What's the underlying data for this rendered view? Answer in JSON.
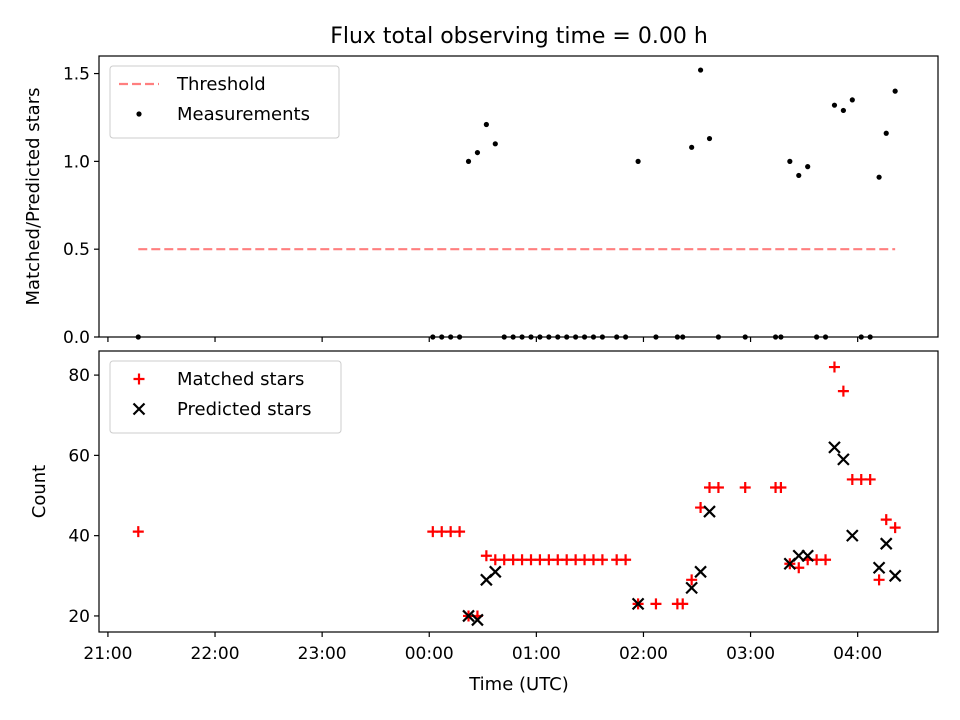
{
  "chart_data": [
    {
      "type": "scatter",
      "title": "Flux total observing time = 0.00 h",
      "xlabel": "",
      "ylabel": "Matched/Predicted stars",
      "xlim": [
        "20:55",
        "04:45"
      ],
      "ylim": [
        0,
        1.6
      ],
      "xticks": [
        {
          "x": "21:00",
          "label": ""
        },
        {
          "x": "22:00",
          "label": ""
        },
        {
          "x": "23:00",
          "label": ""
        },
        {
          "x": "00:00",
          "label": ""
        },
        {
          "x": "01:00",
          "label": ""
        },
        {
          "x": "02:00",
          "label": ""
        },
        {
          "x": "03:00",
          "label": ""
        },
        {
          "x": "04:00",
          "label": ""
        }
      ],
      "yticks": [
        {
          "y": 0,
          "label": "0.0"
        },
        {
          "y": 0.5,
          "label": "0.5"
        },
        {
          "y": 1.0,
          "label": "1.0"
        },
        {
          "y": 1.5,
          "label": "1.5"
        }
      ],
      "legend": "top-left",
      "threshold": {
        "name": "Threshold",
        "value": 0.5,
        "x_range": [
          "21:17",
          "04:21"
        ],
        "color": "#ff7f7f"
      },
      "series": [
        {
          "name": "Measurements",
          "color": "#000000",
          "points": [
            {
              "x": "21:17",
              "y": 0
            },
            {
              "x": "00:02",
              "y": 0
            },
            {
              "x": "00:07",
              "y": 0
            },
            {
              "x": "00:12",
              "y": 0
            },
            {
              "x": "00:17",
              "y": 0
            },
            {
              "x": "00:22",
              "y": 1.0
            },
            {
              "x": "00:27",
              "y": 1.05
            },
            {
              "x": "00:32",
              "y": 1.21
            },
            {
              "x": "00:37",
              "y": 1.1
            },
            {
              "x": "00:42",
              "y": 0
            },
            {
              "x": "00:47",
              "y": 0
            },
            {
              "x": "00:52",
              "y": 0
            },
            {
              "x": "00:57",
              "y": 0
            },
            {
              "x": "01:02",
              "y": 0
            },
            {
              "x": "01:07",
              "y": 0
            },
            {
              "x": "01:12",
              "y": 0
            },
            {
              "x": "01:17",
              "y": 0
            },
            {
              "x": "01:22",
              "y": 0
            },
            {
              "x": "01:27",
              "y": 0
            },
            {
              "x": "01:32",
              "y": 0
            },
            {
              "x": "01:37",
              "y": 0
            },
            {
              "x": "01:45",
              "y": 0
            },
            {
              "x": "01:50",
              "y": 0
            },
            {
              "x": "01:57",
              "y": 1.0
            },
            {
              "x": "02:07",
              "y": 0
            },
            {
              "x": "02:19",
              "y": 0
            },
            {
              "x": "02:22",
              "y": 0
            },
            {
              "x": "02:27",
              "y": 1.08
            },
            {
              "x": "02:32",
              "y": 1.52
            },
            {
              "x": "02:37",
              "y": 1.13
            },
            {
              "x": "02:42",
              "y": 0
            },
            {
              "x": "02:57",
              "y": 0
            },
            {
              "x": "03:14",
              "y": 0
            },
            {
              "x": "03:17",
              "y": 0
            },
            {
              "x": "03:22",
              "y": 1.0
            },
            {
              "x": "03:27",
              "y": 0.92
            },
            {
              "x": "03:32",
              "y": 0.97
            },
            {
              "x": "03:37",
              "y": 0
            },
            {
              "x": "03:42",
              "y": 0
            },
            {
              "x": "03:47",
              "y": 1.32
            },
            {
              "x": "03:52",
              "y": 1.29
            },
            {
              "x": "03:57",
              "y": 1.35
            },
            {
              "x": "04:02",
              "y": 0
            },
            {
              "x": "04:07",
              "y": 0
            },
            {
              "x": "04:12",
              "y": 0.91
            },
            {
              "x": "04:16",
              "y": 1.16
            },
            {
              "x": "04:21",
              "y": 1.4
            }
          ]
        }
      ]
    },
    {
      "type": "scatter",
      "title": "",
      "xlabel": "Time (UTC)",
      "ylabel": "Count",
      "xlim": [
        "20:55",
        "04:45"
      ],
      "ylim": [
        16,
        86
      ],
      "xticks": [
        {
          "x": "21:00",
          "label": "21:00"
        },
        {
          "x": "22:00",
          "label": "22:00"
        },
        {
          "x": "23:00",
          "label": "23:00"
        },
        {
          "x": "00:00",
          "label": "00:00"
        },
        {
          "x": "01:00",
          "label": "01:00"
        },
        {
          "x": "02:00",
          "label": "02:00"
        },
        {
          "x": "03:00",
          "label": "03:00"
        },
        {
          "x": "04:00",
          "label": "04:00"
        }
      ],
      "yticks": [
        {
          "y": 20,
          "label": "20"
        },
        {
          "y": 40,
          "label": "40"
        },
        {
          "y": 60,
          "label": "60"
        },
        {
          "y": 80,
          "label": "80"
        }
      ],
      "legend": "top-left",
      "series": [
        {
          "name": "Matched stars",
          "marker": "plus",
          "color": "#ff0000",
          "points": [
            {
              "x": "21:17",
              "y": 41
            },
            {
              "x": "00:02",
              "y": 41
            },
            {
              "x": "00:07",
              "y": 41
            },
            {
              "x": "00:12",
              "y": 41
            },
            {
              "x": "00:17",
              "y": 41
            },
            {
              "x": "00:22",
              "y": 20
            },
            {
              "x": "00:27",
              "y": 20
            },
            {
              "x": "00:32",
              "y": 35
            },
            {
              "x": "00:37",
              "y": 34
            },
            {
              "x": "00:42",
              "y": 34
            },
            {
              "x": "00:47",
              "y": 34
            },
            {
              "x": "00:52",
              "y": 34
            },
            {
              "x": "00:57",
              "y": 34
            },
            {
              "x": "01:02",
              "y": 34
            },
            {
              "x": "01:07",
              "y": 34
            },
            {
              "x": "01:12",
              "y": 34
            },
            {
              "x": "01:17",
              "y": 34
            },
            {
              "x": "01:22",
              "y": 34
            },
            {
              "x": "01:27",
              "y": 34
            },
            {
              "x": "01:32",
              "y": 34
            },
            {
              "x": "01:37",
              "y": 34
            },
            {
              "x": "01:45",
              "y": 34
            },
            {
              "x": "01:50",
              "y": 34
            },
            {
              "x": "01:57",
              "y": 23
            },
            {
              "x": "02:07",
              "y": 23
            },
            {
              "x": "02:19",
              "y": 23
            },
            {
              "x": "02:22",
              "y": 23
            },
            {
              "x": "02:27",
              "y": 29
            },
            {
              "x": "02:32",
              "y": 47
            },
            {
              "x": "02:37",
              "y": 52
            },
            {
              "x": "02:42",
              "y": 52
            },
            {
              "x": "02:57",
              "y": 52
            },
            {
              "x": "03:14",
              "y": 52
            },
            {
              "x": "03:17",
              "y": 52
            },
            {
              "x": "03:22",
              "y": 33
            },
            {
              "x": "03:27",
              "y": 32
            },
            {
              "x": "03:32",
              "y": 34
            },
            {
              "x": "03:37",
              "y": 34
            },
            {
              "x": "03:42",
              "y": 34
            },
            {
              "x": "03:47",
              "y": 82
            },
            {
              "x": "03:52",
              "y": 76
            },
            {
              "x": "03:57",
              "y": 54
            },
            {
              "x": "04:02",
              "y": 54
            },
            {
              "x": "04:07",
              "y": 54
            },
            {
              "x": "04:12",
              "y": 29
            },
            {
              "x": "04:16",
              "y": 44
            },
            {
              "x": "04:21",
              "y": 42
            }
          ]
        },
        {
          "name": "Predicted stars",
          "marker": "x",
          "color": "#000000",
          "points": [
            {
              "x": "00:22",
              "y": 20
            },
            {
              "x": "00:27",
              "y": 19
            },
            {
              "x": "00:32",
              "y": 29
            },
            {
              "x": "00:37",
              "y": 31
            },
            {
              "x": "01:57",
              "y": 23
            },
            {
              "x": "02:27",
              "y": 27
            },
            {
              "x": "02:32",
              "y": 31
            },
            {
              "x": "02:37",
              "y": 46
            },
            {
              "x": "03:22",
              "y": 33
            },
            {
              "x": "03:27",
              "y": 35
            },
            {
              "x": "03:32",
              "y": 35
            },
            {
              "x": "03:47",
              "y": 62
            },
            {
              "x": "03:52",
              "y": 59
            },
            {
              "x": "03:57",
              "y": 40
            },
            {
              "x": "04:12",
              "y": 32
            },
            {
              "x": "04:16",
              "y": 38
            },
            {
              "x": "04:21",
              "y": 30
            }
          ]
        }
      ]
    }
  ]
}
